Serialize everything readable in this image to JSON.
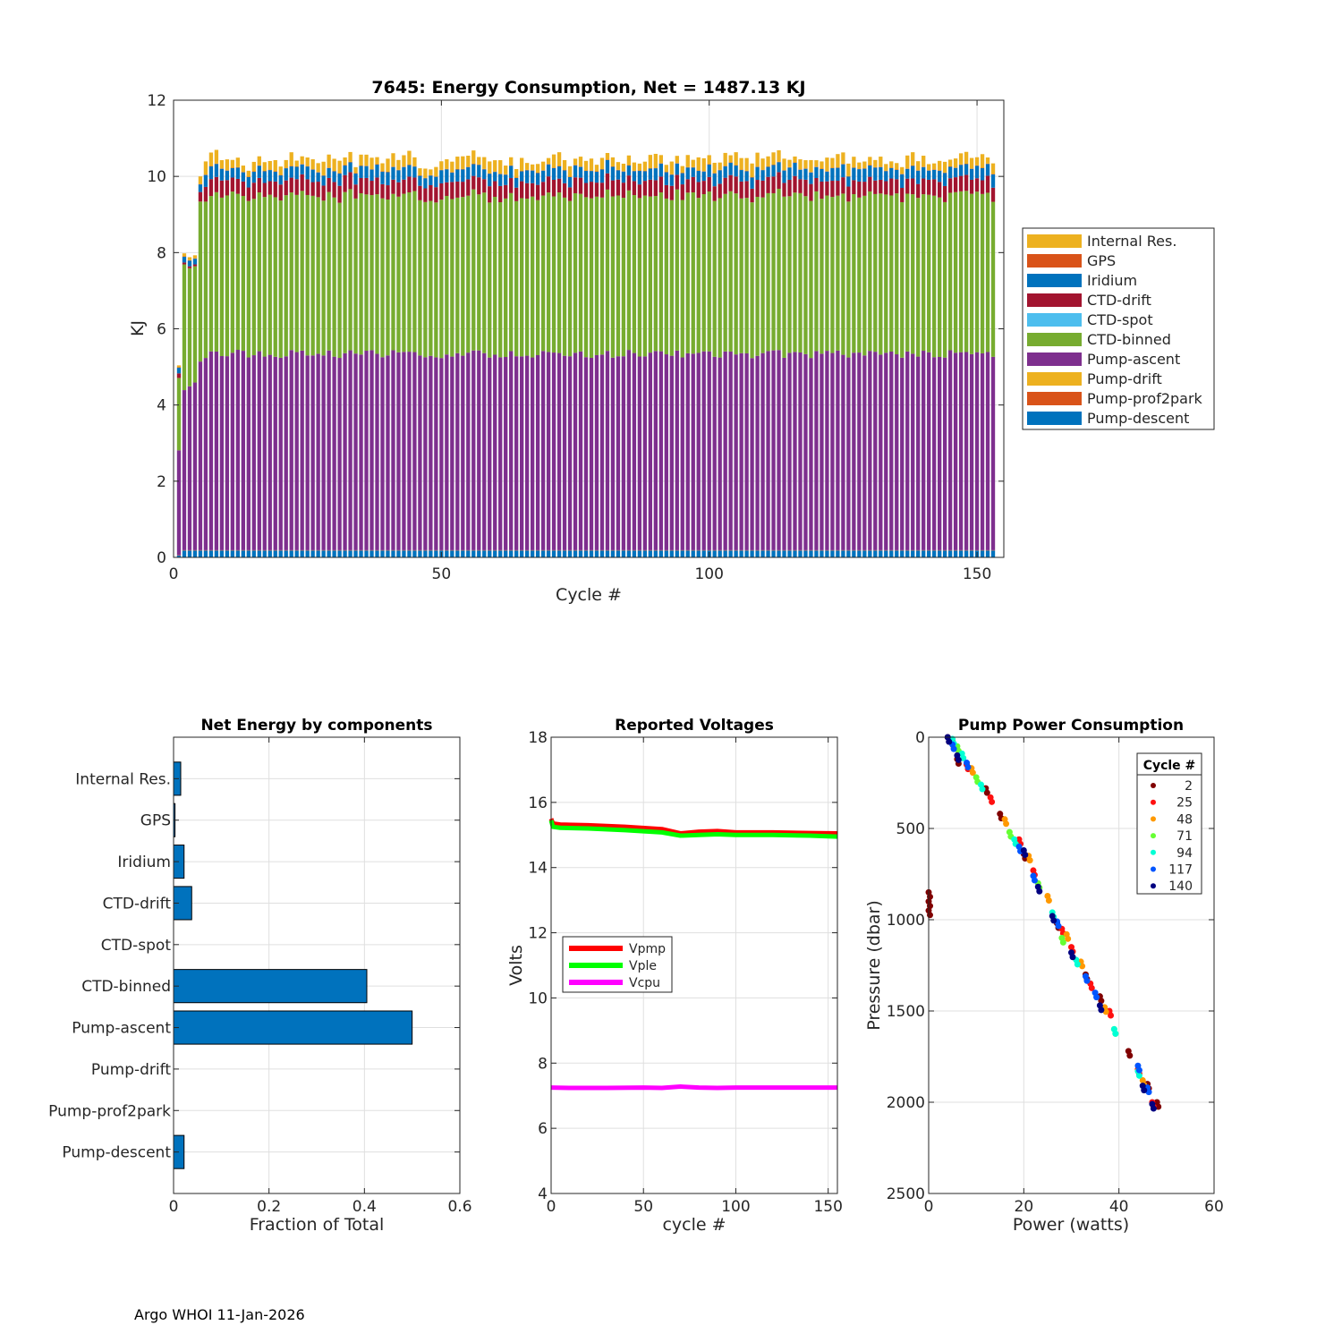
{
  "footer": "Argo WHOI 11-Jan-2026",
  "chart_data": [
    {
      "type": "bar",
      "stacked": true,
      "title": "7645: Energy Consumption,  Net = 1487.13 KJ",
      "xlabel": "Cycle #",
      "ylabel": "KJ",
      "xlim": [
        0,
        155
      ],
      "ylim": [
        0,
        12
      ],
      "xticks": [
        0,
        50,
        100,
        150
      ],
      "yticks": [
        0,
        2,
        4,
        6,
        8,
        10,
        12
      ],
      "grid": true,
      "legend_position": "outside-right",
      "components": [
        {
          "name": "Pump-descent",
          "color": "#0072BD"
        },
        {
          "name": "Pump-prof2park",
          "color": "#D95319"
        },
        {
          "name": "Pump-drift",
          "color": "#EDB120"
        },
        {
          "name": "Pump-ascent",
          "color": "#7E2F8E"
        },
        {
          "name": "CTD-binned",
          "color": "#77AC30"
        },
        {
          "name": "CTD-spot",
          "color": "#4DBEEE"
        },
        {
          "name": "CTD-drift",
          "color": "#A2142F"
        },
        {
          "name": "Iridium",
          "color": "#0072BD"
        },
        {
          "name": "GPS",
          "color": "#D95319"
        },
        {
          "name": "Internal Res.",
          "color": "#EDB120"
        }
      ],
      "legend_order": [
        "Internal Res.",
        "GPS",
        "Iridium",
        "CTD-drift",
        "CTD-spot",
        "CTD-binned",
        "Pump-ascent",
        "Pump-drift",
        "Pump-prof2park",
        "Pump-descent"
      ],
      "early_cycles": [
        {
          "cycle": 1,
          "values": [
            0.05,
            0.01,
            0.0,
            2.75,
            1.9,
            0.0,
            0.12,
            0.15,
            0.01,
            0.05
          ]
        },
        {
          "cycle": 2,
          "values": [
            0.18,
            0.01,
            0.0,
            4.2,
            3.3,
            0.0,
            0.05,
            0.15,
            0.01,
            0.08
          ]
        },
        {
          "cycle": 3,
          "values": [
            0.18,
            0.01,
            0.0,
            4.3,
            3.1,
            0.0,
            0.05,
            0.15,
            0.01,
            0.08
          ]
        },
        {
          "cycle": 4,
          "values": [
            0.18,
            0.01,
            0.0,
            4.4,
            3.05,
            0.0,
            0.05,
            0.15,
            0.01,
            0.08
          ]
        },
        {
          "cycle": 5,
          "values": [
            0.18,
            0.01,
            0.0,
            4.95,
            4.2,
            0.0,
            0.25,
            0.2,
            0.01,
            0.2
          ]
        }
      ],
      "typical_cycle": {
        "values": [
          0.18,
          0.01,
          0.0,
          5.15,
          4.15,
          0.0,
          0.4,
          0.3,
          0.01,
          0.15
        ],
        "total": 10.35
      },
      "n_cycles": 153
    },
    {
      "type": "bar",
      "orientation": "horizontal",
      "title": "Net Energy by components",
      "xlabel": "Fraction of Total",
      "xlim": [
        0,
        0.6
      ],
      "xticks": [
        0,
        0.2,
        0.4,
        0.6
      ],
      "categories": [
        "Internal Res.",
        "GPS",
        "Iridium",
        "CTD-drift",
        "CTD-spot",
        "CTD-binned",
        "Pump-ascent",
        "Pump-drift",
        "Pump-prof2park",
        "Pump-descent"
      ],
      "values": [
        0.015,
        0.003,
        0.022,
        0.038,
        0.0,
        0.405,
        0.5,
        0.0,
        0.0,
        0.022
      ],
      "color": "#0072BD"
    },
    {
      "type": "line",
      "title": "Reported Voltages",
      "xlabel": "cycle #",
      "ylabel": "Volts",
      "xlim": [
        0,
        155
      ],
      "ylim": [
        4,
        18
      ],
      "xticks": [
        0,
        50,
        100,
        150
      ],
      "yticks": [
        4,
        6,
        8,
        10,
        12,
        14,
        16,
        18
      ],
      "legend_position": "center-left",
      "series": [
        {
          "name": "Vpmp",
          "color": "#FF0000",
          "x": [
            0,
            1,
            5,
            20,
            40,
            60,
            70,
            80,
            90,
            100,
            120,
            140,
            155
          ],
          "values": [
            15.5,
            15.35,
            15.32,
            15.3,
            15.25,
            15.18,
            15.05,
            15.1,
            15.12,
            15.08,
            15.08,
            15.06,
            15.05
          ]
        },
        {
          "name": "Vple",
          "color": "#00FF00",
          "x": [
            0,
            1,
            5,
            20,
            40,
            60,
            70,
            80,
            90,
            100,
            120,
            140,
            155
          ],
          "values": [
            15.45,
            15.25,
            15.22,
            15.2,
            15.15,
            15.08,
            14.98,
            15.0,
            15.02,
            15.0,
            15.0,
            14.98,
            14.95
          ]
        },
        {
          "name": "Vcpu",
          "color": "#FF00FF",
          "x": [
            0,
            10,
            30,
            50,
            60,
            70,
            80,
            90,
            100,
            120,
            140,
            155
          ],
          "values": [
            7.25,
            7.24,
            7.24,
            7.25,
            7.24,
            7.28,
            7.25,
            7.24,
            7.25,
            7.25,
            7.25,
            7.25
          ]
        }
      ]
    },
    {
      "type": "scatter",
      "title": "Pump Power Consumption",
      "xlabel": "Power (watts)",
      "ylabel": "Pressure (dbar)",
      "xlim": [
        0,
        60
      ],
      "ylim": [
        0,
        2500
      ],
      "y_reversed": true,
      "xticks": [
        0,
        20,
        40,
        60
      ],
      "yticks": [
        0,
        500,
        1000,
        1500,
        2000,
        2500
      ],
      "legend_title": "Cycle #",
      "legend_position": "top-right",
      "series": [
        {
          "name": "2",
          "color": "#800000",
          "points": [
            [
              0,
              850
            ],
            [
              0,
              900
            ],
            [
              0,
              950
            ],
            [
              4,
              0
            ],
            [
              6,
              120
            ],
            [
              12,
              280
            ],
            [
              15,
              420
            ],
            [
              20,
              640
            ],
            [
              27,
              1020
            ],
            [
              33,
              1300
            ],
            [
              36,
              1420
            ],
            [
              42,
              1720
            ],
            [
              46,
              1900
            ],
            [
              48,
              2000
            ]
          ]
        },
        {
          "name": "25",
          "color": "#FF1010",
          "points": [
            [
              5,
              20
            ],
            [
              8,
              150
            ],
            [
              13,
              330
            ],
            [
              19,
              560
            ],
            [
              22,
              730
            ],
            [
              28,
              1050
            ],
            [
              30,
              1150
            ],
            [
              34,
              1350
            ],
            [
              38,
              1500
            ],
            [
              44,
              1820
            ],
            [
              47,
              2000
            ]
          ]
        },
        {
          "name": "48",
          "color": "#FF9900",
          "points": [
            [
              5,
              30
            ],
            [
              9,
              170
            ],
            [
              16,
              450
            ],
            [
              21,
              650
            ],
            [
              25,
              870
            ],
            [
              29,
              1080
            ],
            [
              32,
              1230
            ],
            [
              37,
              1480
            ],
            [
              45,
              1880
            ]
          ]
        },
        {
          "name": "71",
          "color": "#66FF33",
          "points": [
            [
              6,
              50
            ],
            [
              10,
              220
            ],
            [
              17,
              520
            ],
            [
              23,
              800
            ],
            [
              28,
              1100
            ],
            [
              39,
              1600
            ]
          ]
        },
        {
          "name": "94",
          "color": "#00FFD5",
          "points": [
            [
              5,
              10
            ],
            [
              7,
              90
            ],
            [
              11,
              260
            ],
            [
              18,
              560
            ],
            [
              26,
              960
            ],
            [
              31,
              1220
            ],
            [
              39,
              1600
            ],
            [
              44,
              1830
            ]
          ]
        },
        {
          "name": "117",
          "color": "#0055FF",
          "points": [
            [
              5,
              40
            ],
            [
              8,
              140
            ],
            [
              19,
              600
            ],
            [
              22,
              760
            ],
            [
              27,
              1010
            ],
            [
              33,
              1310
            ],
            [
              35,
              1400
            ],
            [
              44,
              1800
            ],
            [
              46,
              1920
            ]
          ]
        },
        {
          "name": "140",
          "color": "#000080",
          "points": [
            [
              4,
              0
            ],
            [
              6,
              100
            ],
            [
              20,
              620
            ],
            [
              23,
              820
            ],
            [
              26,
              980
            ],
            [
              30,
              1180
            ],
            [
              36,
              1470
            ],
            [
              45,
              1910
            ],
            [
              47,
              2010
            ]
          ]
        }
      ]
    }
  ]
}
